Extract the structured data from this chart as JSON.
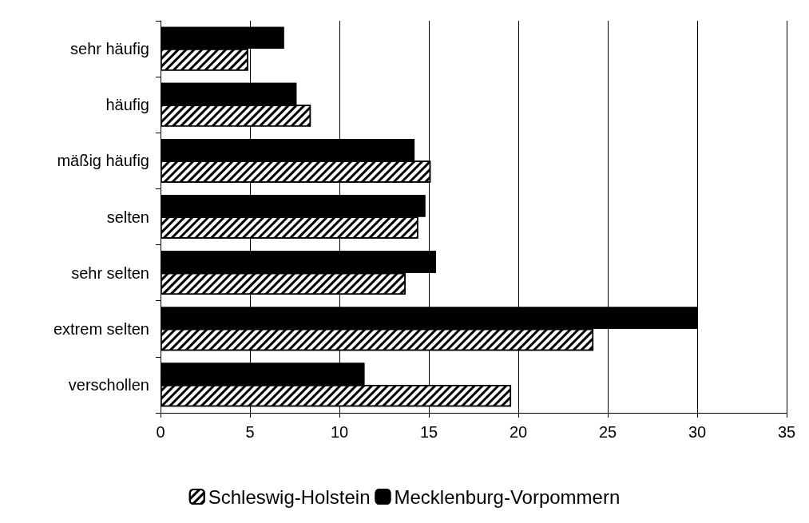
{
  "chart_data": {
    "type": "bar",
    "orientation": "horizontal",
    "categories": [
      "sehr häufig",
      "häufig",
      "mäßig häufig",
      "selten",
      "sehr selten",
      "extrem selten",
      "verschollen"
    ],
    "series": [
      {
        "name": "Schleswig-Holstein",
        "color": "#ffffff",
        "values": [
          4.9,
          8.4,
          15.1,
          14.4,
          13.7,
          24.2,
          19.6
        ]
      },
      {
        "name": "Mecklenburg-Vorpommern",
        "color": "#000000",
        "values": [
          6.9,
          7.6,
          14.2,
          14.8,
          15.4,
          30,
          11.4
        ]
      }
    ],
    "xlim": [
      0,
      35
    ],
    "xticks": [
      0,
      5,
      10,
      15,
      20,
      25,
      30,
      35
    ],
    "grid": "x",
    "legend": "bottom"
  }
}
